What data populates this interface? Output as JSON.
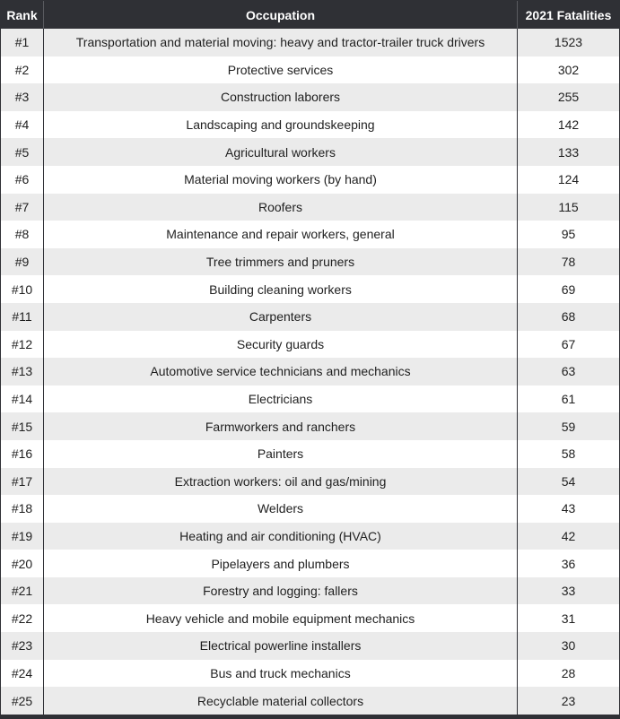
{
  "chart_data": {
    "type": "table",
    "columns": [
      "Rank",
      "Occupation",
      "2021 Fatalities"
    ],
    "rows": [
      {
        "rank": "#1",
        "occupation": "Transportation and material moving: heavy and tractor-trailer truck drivers",
        "fatalities": 1523
      },
      {
        "rank": "#2",
        "occupation": "Protective services",
        "fatalities": 302
      },
      {
        "rank": "#3",
        "occupation": "Construction laborers",
        "fatalities": 255
      },
      {
        "rank": "#4",
        "occupation": "Landscaping and groundskeeping",
        "fatalities": 142
      },
      {
        "rank": "#5",
        "occupation": "Agricultural workers",
        "fatalities": 133
      },
      {
        "rank": "#6",
        "occupation": "Material moving workers (by hand)",
        "fatalities": 124
      },
      {
        "rank": "#7",
        "occupation": "Roofers",
        "fatalities": 115
      },
      {
        "rank": "#8",
        "occupation": "Maintenance and repair workers, general",
        "fatalities": 95
      },
      {
        "rank": "#9",
        "occupation": "Tree trimmers and pruners",
        "fatalities": 78
      },
      {
        "rank": "#10",
        "occupation": "Building cleaning workers",
        "fatalities": 69
      },
      {
        "rank": "#11",
        "occupation": "Carpenters",
        "fatalities": 68
      },
      {
        "rank": "#12",
        "occupation": "Security guards",
        "fatalities": 67
      },
      {
        "rank": "#13",
        "occupation": "Automotive service technicians and mechanics",
        "fatalities": 63
      },
      {
        "rank": "#14",
        "occupation": "Electricians",
        "fatalities": 61
      },
      {
        "rank": "#15",
        "occupation": "Farmworkers and ranchers",
        "fatalities": 59
      },
      {
        "rank": "#16",
        "occupation": "Painters",
        "fatalities": 58
      },
      {
        "rank": "#17",
        "occupation": "Extraction workers: oil and gas/mining",
        "fatalities": 54
      },
      {
        "rank": "#18",
        "occupation": "Welders",
        "fatalities": 43
      },
      {
        "rank": "#19",
        "occupation": "Heating and air conditioning (HVAC)",
        "fatalities": 42
      },
      {
        "rank": "#20",
        "occupation": "Pipelayers and plumbers",
        "fatalities": 36
      },
      {
        "rank": "#21",
        "occupation": "Forestry and logging: fallers",
        "fatalities": 33
      },
      {
        "rank": "#22",
        "occupation": "Heavy vehicle and mobile equipment mechanics",
        "fatalities": 31
      },
      {
        "rank": "#23",
        "occupation": "Electrical powerline installers",
        "fatalities": 30
      },
      {
        "rank": "#24",
        "occupation": "Bus and truck mechanics",
        "fatalities": 28
      },
      {
        "rank": "#25",
        "occupation": "Recyclable material collectors",
        "fatalities": 23
      }
    ]
  },
  "colors": {
    "header_bg": "#2f3035",
    "header_text": "#ffffff",
    "row_alt_bg": "#ebebeb",
    "row_bg": "#ffffff",
    "cell_text": "#1f1f1f"
  }
}
